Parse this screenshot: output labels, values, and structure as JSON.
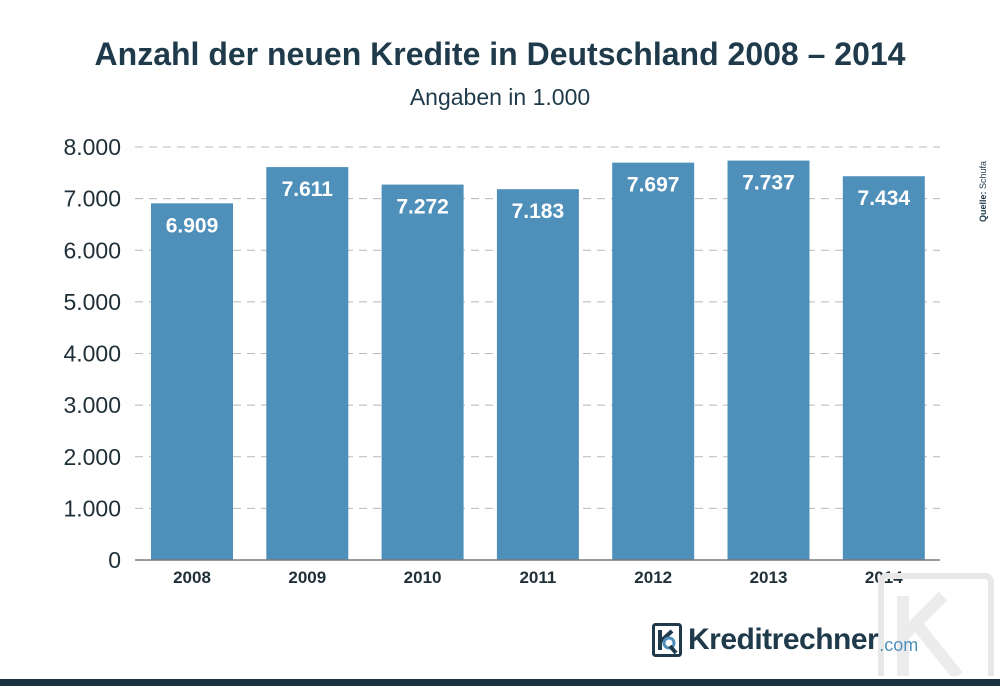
{
  "chart_data": {
    "type": "bar",
    "title": "Anzahl der neuen Kredite in Deutschland 2008 – 2014",
    "subtitle": "Angaben in 1.000",
    "categories": [
      "2008",
      "2009",
      "2010",
      "2011",
      "2012",
      "2013",
      "2014"
    ],
    "values": [
      6909,
      7611,
      7272,
      7183,
      7697,
      7737,
      7434
    ],
    "value_labels": [
      "6.909",
      "7.611",
      "7.272",
      "7.183",
      "7.697",
      "7.737",
      "7.434"
    ],
    "ylim": [
      0,
      8000
    ],
    "yticks": [
      0,
      1000,
      2000,
      3000,
      4000,
      5000,
      6000,
      7000,
      8000
    ],
    "ytick_labels": [
      "0",
      "1.000",
      "2.000",
      "3.000",
      "4.000",
      "5.000",
      "6.000",
      "7.000",
      "8.000"
    ],
    "grid": "horizontal dashed",
    "bar_color": "#4f90bb",
    "label_color": "#ffffff"
  },
  "source": {
    "label": "Quelle:",
    "value": "Schufa"
  },
  "brand": {
    "name": "Kreditrechner",
    "tld": ".com",
    "color": "#1f3a4a",
    "accent": "#4f90bb"
  }
}
